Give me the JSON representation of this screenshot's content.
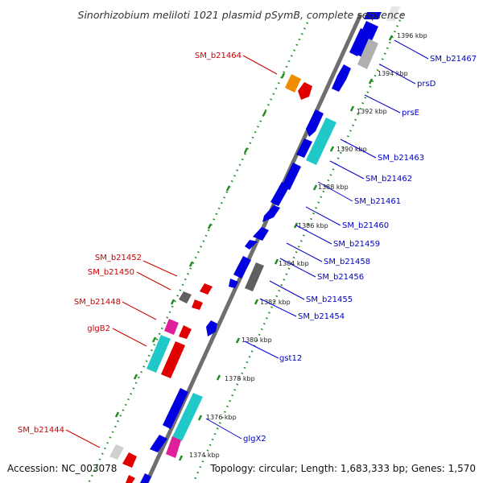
{
  "title": "Sinorhizobium meliloti 1021 plasmid pSymB, complete sequence",
  "footer": {
    "accession": "Accession: NC_003078",
    "summary": "Topology: circular; Length: 1,683,333 bp; Genes: 1,570"
  },
  "colors": {
    "backbone": "#808080",
    "tick": "#228b22",
    "label_right": "#0000cc",
    "label_left": "#cc0000",
    "gene_blue": "#0000e0",
    "gene_red": "#e00000",
    "gene_cyan": "#20c8c8",
    "gene_gray": "#a0a0a0",
    "gene_dark": "#606060",
    "gene_magenta": "#e0209a",
    "gene_orange": "#f08c00"
  },
  "kbp_ticks": [
    "1396 kbp",
    "1394 kbp",
    "1392 kbp",
    "1390 kbp",
    "1388 kbp",
    "1386 kbp",
    "1384 kbp",
    "1382 kbp",
    "1380 kbp",
    "1378 kbp",
    "1376 kbp",
    "1374 kbp"
  ],
  "right_labels": [
    "SM_b21467",
    "prsD",
    "prsE",
    "SM_b21463",
    "SM_b21462",
    "SM_b21461",
    "SM_b21460",
    "SM_b21459",
    "SM_b21458",
    "SM_b21456",
    "SM_b21455",
    "SM_b21454",
    "gst12",
    "glgX2"
  ],
  "left_labels": [
    "SM_b21464",
    "SM_b21452",
    "SM_b21450",
    "SM_b21448",
    "glgB2",
    "SM_b21444"
  ]
}
